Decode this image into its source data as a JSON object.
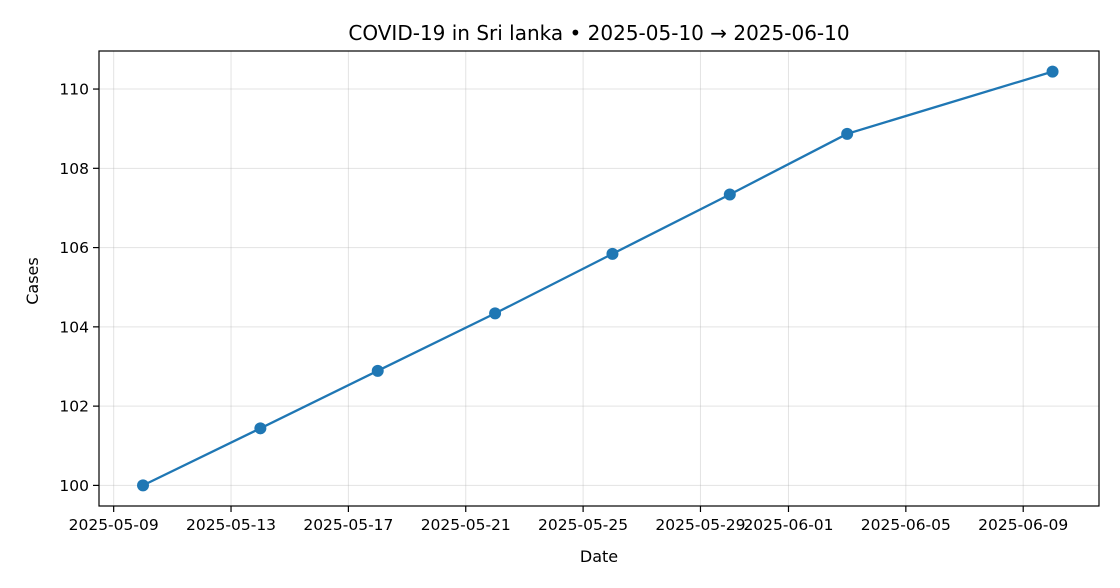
{
  "chart_data": {
    "type": "line",
    "title": "COVID-19 in Sri lanka • 2025-05-10 → 2025-06-10",
    "xlabel": "Date",
    "ylabel": "Cases",
    "x": [
      "2025-05-10",
      "2025-05-14",
      "2025-05-18",
      "2025-05-22",
      "2025-05-26",
      "2025-05-30",
      "2025-06-03",
      "2025-06-10"
    ],
    "series": [
      {
        "values": [
          100.0,
          101.44,
          102.89,
          104.34,
          105.84,
          107.34,
          108.87,
          110.44
        ]
      }
    ],
    "x_ticks": [
      "2025-05-09",
      "2025-05-13",
      "2025-05-17",
      "2025-05-21",
      "2025-05-25",
      "2025-05-29",
      "2025-06-01",
      "2025-06-05",
      "2025-06-09"
    ],
    "y_ticks": [
      100,
      102,
      104,
      106,
      108,
      110
    ],
    "xlim": [
      "2025-05-08.5",
      "2025-06-11.6"
    ],
    "ylim": [
      99.48,
      110.96
    ],
    "grid": true,
    "legend": "none",
    "color": "#1f77b4"
  }
}
